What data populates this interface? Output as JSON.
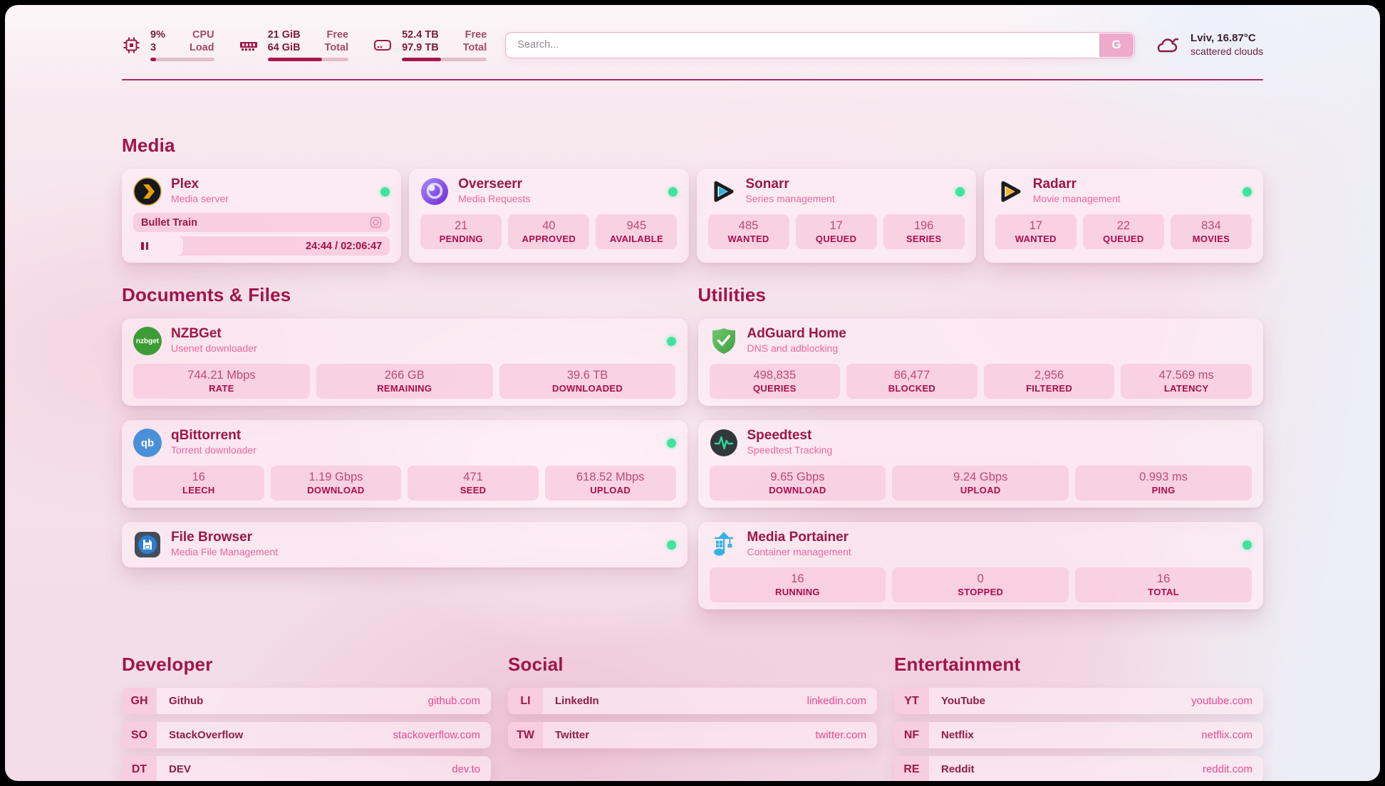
{
  "colors": {
    "accent": "#a0144a",
    "status_online": "#3fe2a1",
    "link_url": "#e84b94",
    "stat_label": "#ab0d4e"
  },
  "topbar": {
    "cpu": {
      "value1": "9%",
      "value2": "3",
      "label1": "CPU",
      "label2": "Load",
      "progress_pct": 9
    },
    "memory": {
      "value1": "21 GiB",
      "value2": "64 GiB",
      "label1": "Free",
      "label2": "Total",
      "progress_pct": 67
    },
    "disk": {
      "value1": "52.4 TB",
      "value2": "97.9 TB",
      "label1": "Free",
      "label2": "Total",
      "progress_pct": 46
    },
    "search": {
      "placeholder": "Search...",
      "button_label": "G"
    },
    "weather": {
      "icon": "scattered-clouds-icon",
      "location_temp": "Lviv, 16.87°C",
      "condition": "scattered clouds"
    }
  },
  "sections": {
    "media": {
      "title": "Media",
      "cards": [
        {
          "title": "Plex",
          "subtitle": "Media server",
          "icon": "plex-icon",
          "online": true,
          "now_playing": {
            "media_title": "Bullet Train",
            "time_display": "24:44 / 02:06:47",
            "progress_pct": 19.5
          }
        },
        {
          "title": "Overseerr",
          "subtitle": "Media Requests",
          "icon": "overseerr-icon",
          "online": true,
          "stats": [
            {
              "value": "21",
              "label": "PENDING"
            },
            {
              "value": "40",
              "label": "APPROVED"
            },
            {
              "value": "945",
              "label": "AVAILABLE"
            }
          ]
        },
        {
          "title": "Sonarr",
          "subtitle": "Series management",
          "icon": "sonarr-icon",
          "online": true,
          "stats": [
            {
              "value": "485",
              "label": "WANTED"
            },
            {
              "value": "17",
              "label": "QUEUED"
            },
            {
              "value": "196",
              "label": "SERIES"
            }
          ]
        },
        {
          "title": "Radarr",
          "subtitle": "Movie management",
          "icon": "radarr-icon",
          "online": true,
          "stats": [
            {
              "value": "17",
              "label": "WANTED"
            },
            {
              "value": "22",
              "label": "QUEUED"
            },
            {
              "value": "834",
              "label": "MOVIES"
            }
          ]
        }
      ]
    },
    "documents": {
      "title": "Documents & Files",
      "cards": [
        {
          "title": "NZBGet",
          "subtitle": "Usenet downloader",
          "icon": "nzbget-icon",
          "icon_text": "nzbget",
          "online": true,
          "stats": [
            {
              "value": "744.21 Mbps",
              "label": "RATE"
            },
            {
              "value": "266 GB",
              "label": "REMAINING"
            },
            {
              "value": "39.6 TB",
              "label": "DOWNLOADED"
            }
          ]
        },
        {
          "title": "qBittorrent",
          "subtitle": "Torrent downloader",
          "icon": "qbittorrent-icon",
          "icon_text": "qb",
          "online": true,
          "stats": [
            {
              "value": "16",
              "label": "LEECH"
            },
            {
              "value": "1.19 Gbps",
              "label": "DOWNLOAD"
            },
            {
              "value": "471",
              "label": "SEED"
            },
            {
              "value": "618.52 Mbps",
              "label": "UPLOAD"
            }
          ]
        },
        {
          "title": "File Browser",
          "subtitle": "Media File Management",
          "icon": "filebrowser-icon",
          "online": true
        }
      ]
    },
    "utilities": {
      "title": "Utilities",
      "cards": [
        {
          "title": "AdGuard Home",
          "subtitle": "DNS and adblocking",
          "icon": "adguard-icon",
          "online": false,
          "stats": [
            {
              "value": "498,835",
              "label": "QUERIES"
            },
            {
              "value": "86,477",
              "label": "BLOCKED"
            },
            {
              "value": "2,956",
              "label": "FILTERED"
            },
            {
              "value": "47.569 ms",
              "label": "LATENCY"
            }
          ]
        },
        {
          "title": "Speedtest",
          "subtitle": "Speedtest Tracking",
          "icon": "speedtest-icon",
          "online": false,
          "stats": [
            {
              "value": "9.65 Gbps",
              "label": "DOWNLOAD"
            },
            {
              "value": "9.24 Gbps",
              "label": "UPLOAD"
            },
            {
              "value": "0.993 ms",
              "label": "PING"
            }
          ]
        },
        {
          "title": "Media Portainer",
          "subtitle": "Container management",
          "icon": "portainer-icon",
          "online": true,
          "stats": [
            {
              "value": "16",
              "label": "RUNNING"
            },
            {
              "value": "0",
              "label": "STOPPED"
            },
            {
              "value": "16",
              "label": "TOTAL"
            }
          ]
        }
      ]
    },
    "developer": {
      "title": "Developer",
      "links": [
        {
          "tag": "GH",
          "name": "Github",
          "url": "github.com"
        },
        {
          "tag": "SO",
          "name": "StackOverflow",
          "url": "stackoverflow.com"
        },
        {
          "tag": "DT",
          "name": "DEV",
          "url": "dev.to"
        }
      ]
    },
    "social": {
      "title": "Social",
      "links": [
        {
          "tag": "LI",
          "name": "LinkedIn",
          "url": "linkedin.com"
        },
        {
          "tag": "TW",
          "name": "Twitter",
          "url": "twitter.com"
        }
      ]
    },
    "entertainment": {
      "title": "Entertainment",
      "links": [
        {
          "tag": "YT",
          "name": "YouTube",
          "url": "youtube.com"
        },
        {
          "tag": "NF",
          "name": "Netflix",
          "url": "netflix.com"
        },
        {
          "tag": "RE",
          "name": "Reddit",
          "url": "reddit.com"
        }
      ]
    }
  }
}
